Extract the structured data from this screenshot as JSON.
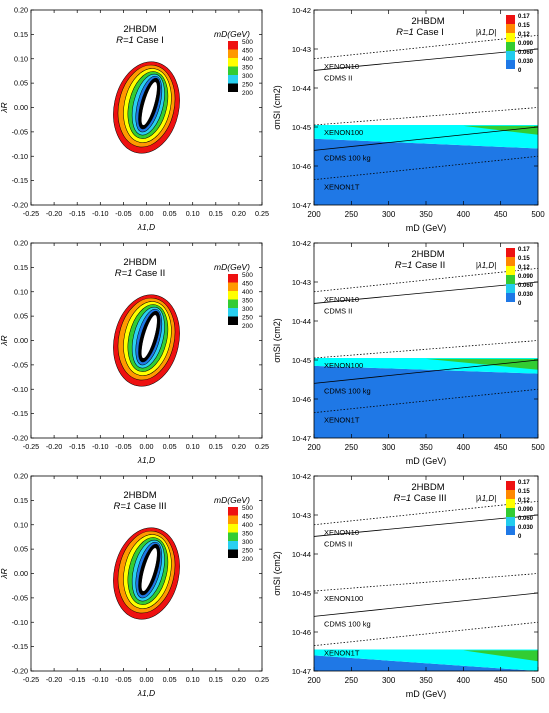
{
  "colors": {
    "mass_palette": [
      "#1f78e6",
      "#2ad0f0",
      "#33cc33",
      "#ffff00",
      "#ff9900",
      "#ee1111"
    ],
    "coupling_palette": [
      "#1f78e6",
      "#22ccee",
      "#33cc33",
      "#ffff00",
      "#ff8800",
      "#ee1111"
    ],
    "cyan_region": "#00ffff",
    "blue_region": "#1f78e6",
    "green_region": "#33cc33"
  },
  "chart_data": [
    {
      "type": "contour",
      "panel": "left-1",
      "title": "2HBDM",
      "subtitle_prefix": "R=1",
      "subtitle_suffix": " Case I",
      "xlabel": "λ1,D",
      "ylabel": "λR",
      "xlim": [
        -0.25,
        0.25
      ],
      "ylim": [
        -0.2,
        0.2
      ],
      "xticks": [
        "-0.25",
        "-0.20",
        "-0.15",
        "-0.10",
        "-0.05",
        "0.00",
        "0.05",
        "0.10",
        "0.15",
        "0.20",
        "0.25"
      ],
      "yticks": [
        "0.20",
        "0.15",
        "0.10",
        "0.05",
        "0.00",
        "-0.05",
        "-0.10",
        "-0.15",
        "-0.20"
      ],
      "legend_title": "mD(GeV)",
      "legend_labels": [
        "500",
        "450",
        "400",
        "350",
        "300",
        "250",
        "200"
      ],
      "rings": [
        {
          "value": 500,
          "cx": 0.0,
          "cy": 0.0,
          "rx": 0.07,
          "ry": 0.095,
          "rot": 12
        },
        {
          "value": 450,
          "cx": 0.0,
          "cy": 0.003,
          "rx": 0.06,
          "ry": 0.085,
          "rot": 12
        },
        {
          "value": 400,
          "cx": 0.002,
          "cy": 0.004,
          "rx": 0.05,
          "ry": 0.077,
          "rot": 12
        },
        {
          "value": 350,
          "cx": 0.003,
          "cy": 0.005,
          "rx": 0.041,
          "ry": 0.07,
          "rot": 13
        },
        {
          "value": 300,
          "cx": 0.004,
          "cy": 0.006,
          "rx": 0.032,
          "ry": 0.064,
          "rot": 14
        },
        {
          "value": 250,
          "cx": 0.005,
          "cy": 0.007,
          "rx": 0.024,
          "ry": 0.059,
          "rot": 15
        },
        {
          "value": 200,
          "cx": 0.006,
          "cy": 0.008,
          "rx": 0.018,
          "ry": 0.054,
          "rot": 16
        }
      ]
    },
    {
      "type": "area",
      "panel": "right-1",
      "title": "2HBDM",
      "subtitle_prefix": "R=1",
      "subtitle_suffix": " Case I",
      "xlabel": "mD (GeV)",
      "ylabel": "σnSI (cm2)",
      "xlim": [
        200,
        500
      ],
      "ylim_exponent": [
        -47,
        -42
      ],
      "xticks": [
        "200",
        "250",
        "300",
        "350",
        "400",
        "450",
        "500"
      ],
      "yticks": [
        "10-42",
        "10-43",
        "10-44",
        "10-45",
        "10-46",
        "10-47"
      ],
      "legend_title": "|λ1,D|",
      "legend_labels": [
        "0.17",
        "0.15",
        "0.12",
        "0.090",
        "0.060",
        "0.030",
        "0"
      ],
      "limit_curves": [
        {
          "name": "XENON10",
          "style": "dotted",
          "x": [
            200,
            500
          ],
          "logy": [
            -43.25,
            -42.65
          ]
        },
        {
          "name": "CDMS II",
          "style": "solid",
          "x": [
            200,
            500
          ],
          "logy": [
            -43.55,
            -43.0
          ]
        },
        {
          "name": "XENON100",
          "style": "dotted",
          "x": [
            200,
            500
          ],
          "logy": [
            -44.95,
            -44.5
          ]
        },
        {
          "name": "CDMS 100 kg",
          "style": "solid",
          "x": [
            200,
            500
          ],
          "logy": [
            -45.6,
            -45.0
          ]
        },
        {
          "name": "XENON1T",
          "style": "dotted",
          "x": [
            200,
            500
          ],
          "logy": [
            -46.35,
            -45.75
          ]
        }
      ],
      "region_top_logy": [
        -44.95,
        -44.95
      ],
      "region_split_logy": [
        -45.3,
        -45.55
      ],
      "green_wedge": {
        "x": [
          400,
          500
        ],
        "top_logy": [
          -44.97,
          -44.97
        ],
        "bottom_logy": [
          -44.97,
          -45.2
        ]
      }
    },
    {
      "type": "contour",
      "panel": "left-2",
      "title": "2HBDM",
      "subtitle_prefix": "R=1",
      "subtitle_suffix": " Case II",
      "xlabel": "λ1,D",
      "ylabel": "λR",
      "xlim": [
        -0.25,
        0.25
      ],
      "ylim": [
        -0.2,
        0.2
      ],
      "xticks": [
        "-0.25",
        "-0.20",
        "-0.15",
        "-0.10",
        "-0.05",
        "0.00",
        "0.05",
        "0.10",
        "0.15",
        "0.20",
        "0.25"
      ],
      "yticks": [
        "0.20",
        "0.15",
        "0.10",
        "0.05",
        "0.00",
        "-0.05",
        "-0.10",
        "-0.15",
        "-0.20"
      ],
      "legend_title": "mD(GeV)",
      "legend_labels": [
        "500",
        "450",
        "400",
        "350",
        "300",
        "250",
        "200"
      ],
      "rings": [
        {
          "value": 500,
          "cx": 0.0,
          "cy": 0.0,
          "rx": 0.07,
          "ry": 0.095,
          "rot": 12
        },
        {
          "value": 450,
          "cx": 0.0,
          "cy": 0.003,
          "rx": 0.06,
          "ry": 0.085,
          "rot": 12
        },
        {
          "value": 400,
          "cx": 0.002,
          "cy": 0.004,
          "rx": 0.05,
          "ry": 0.077,
          "rot": 12
        },
        {
          "value": 350,
          "cx": 0.003,
          "cy": 0.005,
          "rx": 0.041,
          "ry": 0.07,
          "rot": 13
        },
        {
          "value": 300,
          "cx": 0.004,
          "cy": 0.006,
          "rx": 0.032,
          "ry": 0.064,
          "rot": 14
        },
        {
          "value": 250,
          "cx": 0.005,
          "cy": 0.007,
          "rx": 0.024,
          "ry": 0.059,
          "rot": 15
        },
        {
          "value": 200,
          "cx": 0.006,
          "cy": 0.008,
          "rx": 0.018,
          "ry": 0.054,
          "rot": 16
        }
      ]
    },
    {
      "type": "area",
      "panel": "right-2",
      "title": "2HBDM",
      "subtitle_prefix": "R=1",
      "subtitle_suffix": " Case II",
      "xlabel": "mD (GeV)",
      "ylabel": "σnSI (cm2)",
      "xlim": [
        200,
        500
      ],
      "ylim_exponent": [
        -47,
        -42
      ],
      "xticks": [
        "200",
        "250",
        "300",
        "350",
        "400",
        "450",
        "500"
      ],
      "yticks": [
        "10-42",
        "10-43",
        "10-44",
        "10-45",
        "10-46",
        "10-47"
      ],
      "legend_title": "|λ1,D|",
      "legend_labels": [
        "0.17",
        "0.15",
        "0.12",
        "0.090",
        "0.060",
        "0.030",
        "0"
      ],
      "limit_curves": [
        {
          "name": "XENON10",
          "style": "dotted",
          "x": [
            200,
            500
          ],
          "logy": [
            -43.25,
            -42.65
          ]
        },
        {
          "name": "CDMS II",
          "style": "solid",
          "x": [
            200,
            500
          ],
          "logy": [
            -43.55,
            -43.0
          ]
        },
        {
          "name": "XENON100",
          "style": "dotted",
          "x": [
            200,
            500
          ],
          "logy": [
            -44.95,
            -44.5
          ]
        },
        {
          "name": "CDMS 100 kg",
          "style": "solid",
          "x": [
            200,
            500
          ],
          "logy": [
            -45.6,
            -45.0
          ]
        },
        {
          "name": "XENON1T",
          "style": "dotted",
          "x": [
            200,
            500
          ],
          "logy": [
            -46.35,
            -45.75
          ]
        }
      ],
      "region_top_logy": [
        -44.95,
        -44.95
      ],
      "region_split_logy": [
        -45.15,
        -45.35
      ],
      "green_wedge": {
        "x": [
          350,
          500
        ],
        "top_logy": [
          -44.97,
          -44.97
        ],
        "bottom_logy": [
          -44.97,
          -45.25
        ]
      }
    },
    {
      "type": "contour",
      "panel": "left-3",
      "title": "2HBDM",
      "subtitle_prefix": "R=1",
      "subtitle_suffix": " Case III",
      "xlabel": "λ1,D",
      "ylabel": "λR",
      "xlim": [
        -0.25,
        0.25
      ],
      "ylim": [
        -0.2,
        0.2
      ],
      "xticks": [
        "-0.25",
        "-0.20",
        "-0.15",
        "-0.10",
        "-0.05",
        "0.00",
        "0.05",
        "0.10",
        "0.15",
        "0.20",
        "0.25"
      ],
      "yticks": [
        "0.20",
        "0.15",
        "0.10",
        "0.05",
        "0.00",
        "-0.05",
        "-0.10",
        "-0.15",
        "-0.20"
      ],
      "legend_title": "mD(GeV)",
      "legend_labels": [
        "500",
        "450",
        "400",
        "350",
        "300",
        "250",
        "200"
      ],
      "rings": [
        {
          "value": 500,
          "cx": 0.0,
          "cy": 0.0,
          "rx": 0.07,
          "ry": 0.095,
          "rot": 12
        },
        {
          "value": 450,
          "cx": 0.0,
          "cy": 0.003,
          "rx": 0.06,
          "ry": 0.085,
          "rot": 12
        },
        {
          "value": 400,
          "cx": 0.002,
          "cy": 0.004,
          "rx": 0.05,
          "ry": 0.077,
          "rot": 12
        },
        {
          "value": 350,
          "cx": 0.003,
          "cy": 0.005,
          "rx": 0.041,
          "ry": 0.07,
          "rot": 13
        },
        {
          "value": 300,
          "cx": 0.004,
          "cy": 0.006,
          "rx": 0.032,
          "ry": 0.064,
          "rot": 14
        },
        {
          "value": 250,
          "cx": 0.005,
          "cy": 0.007,
          "rx": 0.024,
          "ry": 0.059,
          "rot": 15
        },
        {
          "value": 200,
          "cx": 0.006,
          "cy": 0.008,
          "rx": 0.018,
          "ry": 0.054,
          "rot": 16
        }
      ]
    },
    {
      "type": "area",
      "panel": "right-3",
      "title": "2HBDM",
      "subtitle_prefix": "R=1",
      "subtitle_suffix": " Case III",
      "xlabel": "mD (GeV)",
      "ylabel": "σnSI (cm2)",
      "xlim": [
        200,
        500
      ],
      "ylim_exponent": [
        -47,
        -42
      ],
      "xticks": [
        "200",
        "250",
        "300",
        "350",
        "400",
        "450",
        "500"
      ],
      "yticks": [
        "10-42",
        "10-43",
        "10-44",
        "10-45",
        "10-46",
        "10-47"
      ],
      "legend_title": "|λ1,D|",
      "legend_labels": [
        "0.17",
        "0.15",
        "0.12",
        "0.090",
        "0.060",
        "0.030",
        "0"
      ],
      "limit_curves": [
        {
          "name": "XENON10",
          "style": "dotted",
          "x": [
            200,
            500
          ],
          "logy": [
            -43.25,
            -42.65
          ]
        },
        {
          "name": "CDMS II",
          "style": "solid",
          "x": [
            200,
            500
          ],
          "logy": [
            -43.55,
            -43.0
          ]
        },
        {
          "name": "XENON100",
          "style": "dotted",
          "x": [
            200,
            500
          ],
          "logy": [
            -44.95,
            -44.5
          ]
        },
        {
          "name": "CDMS 100 kg",
          "style": "solid",
          "x": [
            200,
            500
          ],
          "logy": [
            -45.6,
            -45.0
          ]
        },
        {
          "name": "XENON1T",
          "style": "dotted",
          "x": [
            200,
            500
          ],
          "logy": [
            -46.35,
            -45.75
          ]
        }
      ],
      "region_top_logy": [
        -46.45,
        -46.45
      ],
      "region_split_logy": [
        -46.6,
        -47.0
      ],
      "green_wedge": {
        "x": [
          400,
          500
        ],
        "top_logy": [
          -46.47,
          -46.47
        ],
        "bottom_logy": [
          -46.47,
          -46.75
        ]
      }
    }
  ]
}
